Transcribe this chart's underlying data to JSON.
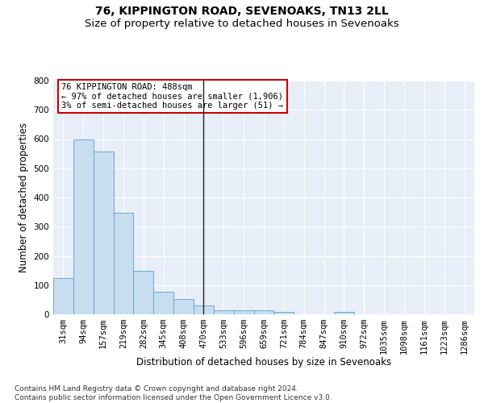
{
  "title": "76, KIPPINGTON ROAD, SEVENOAKS, TN13 2LL",
  "subtitle": "Size of property relative to detached houses in Sevenoaks",
  "xlabel": "Distribution of detached houses by size in Sevenoaks",
  "ylabel": "Number of detached properties",
  "categories": [
    "31sqm",
    "94sqm",
    "157sqm",
    "219sqm",
    "282sqm",
    "345sqm",
    "408sqm",
    "470sqm",
    "533sqm",
    "596sqm",
    "659sqm",
    "721sqm",
    "784sqm",
    "847sqm",
    "910sqm",
    "972sqm",
    "1035sqm",
    "1098sqm",
    "1161sqm",
    "1223sqm",
    "1286sqm"
  ],
  "values": [
    125,
    600,
    557,
    348,
    150,
    77,
    52,
    30,
    15,
    13,
    13,
    7,
    0,
    0,
    8,
    0,
    0,
    0,
    0,
    0,
    0
  ],
  "bar_color": "#c8ddf0",
  "bar_edge_color": "#5a9fd4",
  "background_color": "#e8eef8",
  "vline_x_index": 7,
  "vline_color": "#222222",
  "annotation_text": "76 KIPPINGTON ROAD: 488sqm\n← 97% of detached houses are smaller (1,906)\n3% of semi-detached houses are larger (51) →",
  "annotation_box_color": "#ffffff",
  "annotation_border_color": "#cc0000",
  "ylim": [
    0,
    800
  ],
  "yticks": [
    0,
    100,
    200,
    300,
    400,
    500,
    600,
    700,
    800
  ],
  "footnote": "Contains HM Land Registry data © Crown copyright and database right 2024.\nContains public sector information licensed under the Open Government Licence v3.0.",
  "title_fontsize": 10,
  "subtitle_fontsize": 9.5,
  "axis_label_fontsize": 8.5,
  "tick_fontsize": 7.5,
  "annotation_fontsize": 7.5,
  "footnote_fontsize": 6.5
}
